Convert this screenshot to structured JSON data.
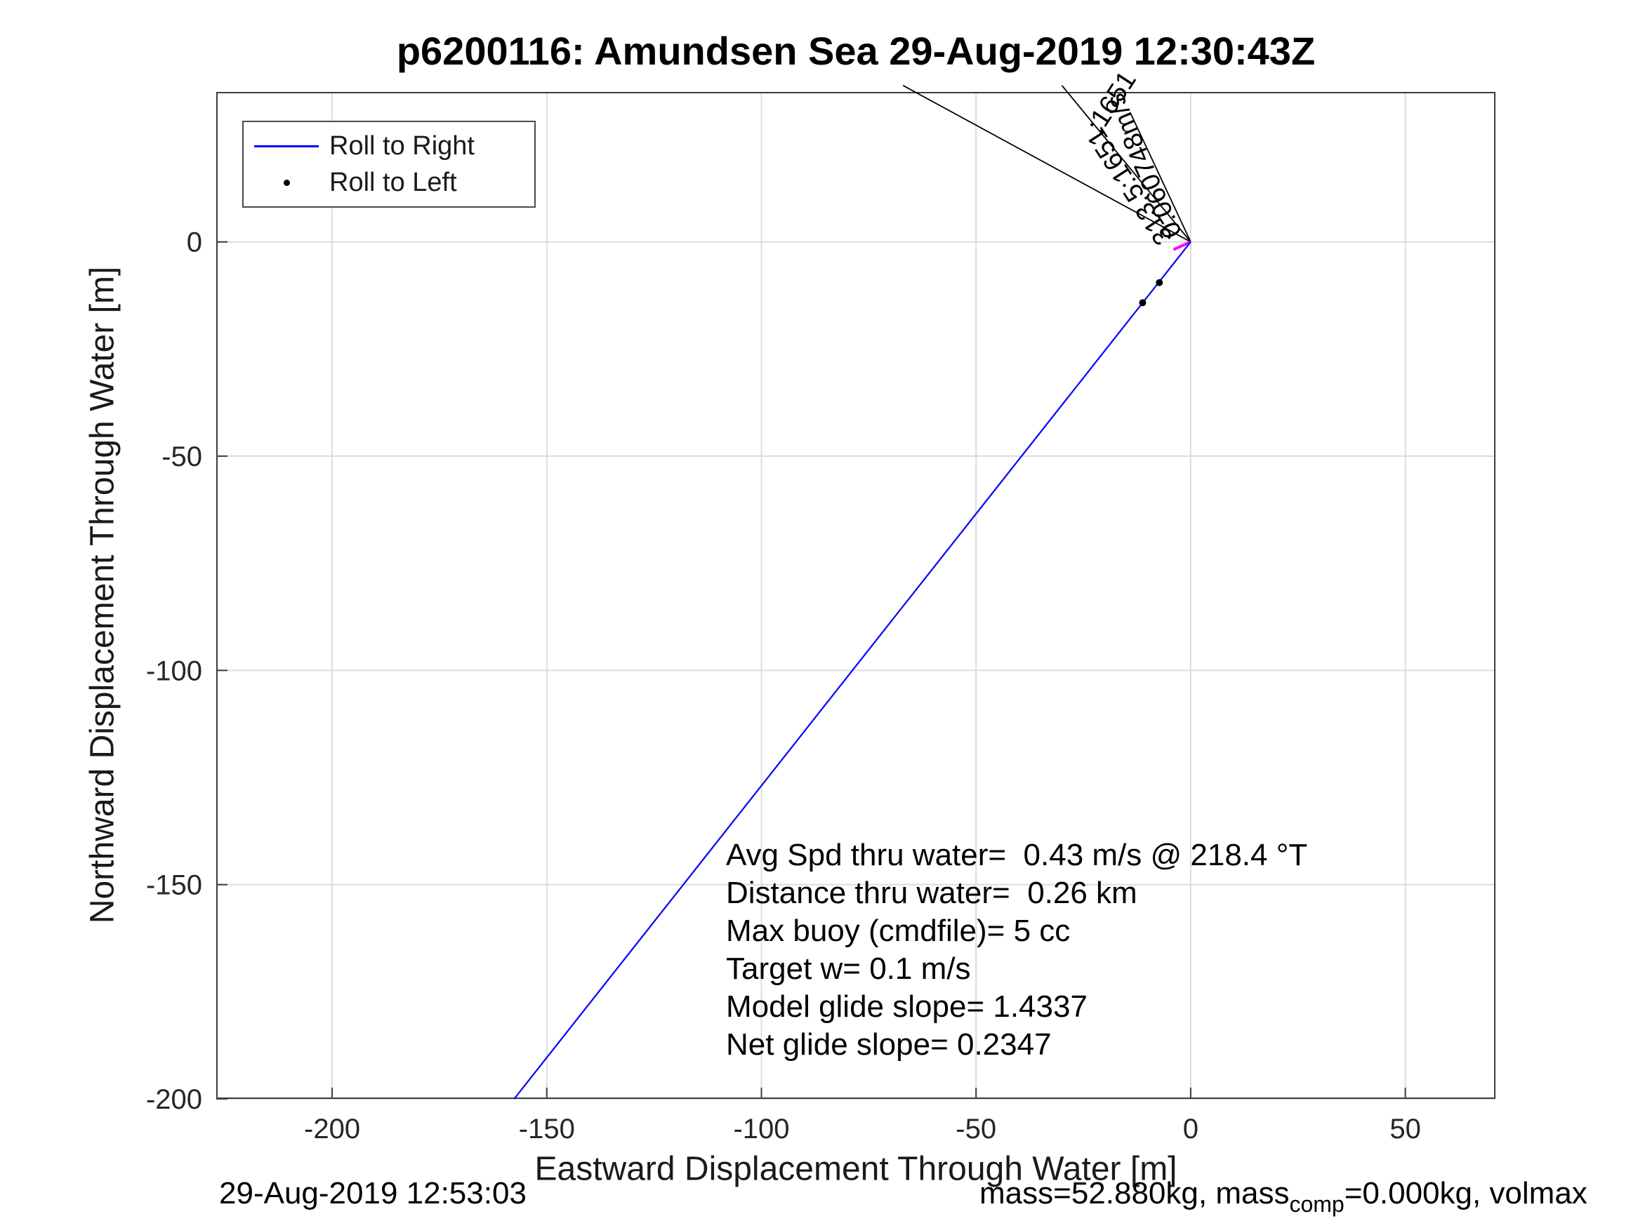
{
  "chart_data": {
    "type": "line",
    "title": "p6200116: Amundsen Sea 29-Aug-2019 12:30:43Z",
    "xlabel": "Eastward Displacement Through Water [m]",
    "ylabel": "Northward Displacement Through Water [m]",
    "xlim": [
      -227,
      71
    ],
    "ylim": [
      -200,
      35
    ],
    "xticks": [
      -200,
      -150,
      -100,
      -50,
      0,
      50
    ],
    "yticks": [
      0,
      -50,
      -100,
      -150,
      -200
    ],
    "grid": true,
    "legend_position": "top-left-inside",
    "series": [
      {
        "name": "Roll to Right",
        "kind": "line",
        "color": "#0000ff",
        "points": [
          [
            0,
            0
          ],
          [
            -157.6,
            -200
          ]
        ]
      },
      {
        "name": "Roll to Left",
        "kind": "scatter",
        "color": "#000000",
        "points": [
          [
            -7.3,
            -9.5
          ],
          [
            -11.2,
            -14.2
          ]
        ]
      }
    ],
    "heading_fan": {
      "color": "#000000",
      "lines": [
        [
          [
            0,
            0
          ],
          [
            -67,
            36.5
          ]
        ],
        [
          [
            0,
            0
          ],
          [
            -30,
            36.5
          ]
        ],
        [
          [
            0,
            0
          ],
          [
            -14,
            30
          ]
        ]
      ],
      "labels": [
        {
          "text": "0.060748m/s",
          "x": -2,
          "y": 2,
          "rot": -113
        },
        {
          "text": "313.5:1651",
          "x": -4,
          "y": 1,
          "rot": -123
        },
        {
          "text": ":1651",
          "x": -21,
          "y": 25,
          "rot": -57
        }
      ]
    },
    "origin_marker": {
      "color": "#ff00ff",
      "points": [
        [
          0,
          0
        ],
        [
          -4,
          -1.8
        ]
      ]
    },
    "annotation_lines": [
      "Avg Spd thru water=  0.43 m/s @ 218.4 °T",
      "Distance thru water=  0.26 km",
      "Max buoy (cmdfile)= 5 cc",
      "Target w= 0.1 m/s",
      "Model glide slope= 1.4337",
      "Net glide slope= 0.2347"
    ]
  },
  "legend": {
    "items": [
      {
        "label": "Roll to Right",
        "marker": "line",
        "color": "#0000ff"
      },
      {
        "label": "Roll to Left",
        "marker": "dot",
        "color": "#000000"
      }
    ]
  },
  "footer": {
    "timestamp": "29-Aug-2019 12:53:03",
    "mass_prefix": "mass=52.880kg, mass",
    "mass_sub": "comp",
    "mass_suffix": "=0.000kg, volmax"
  }
}
